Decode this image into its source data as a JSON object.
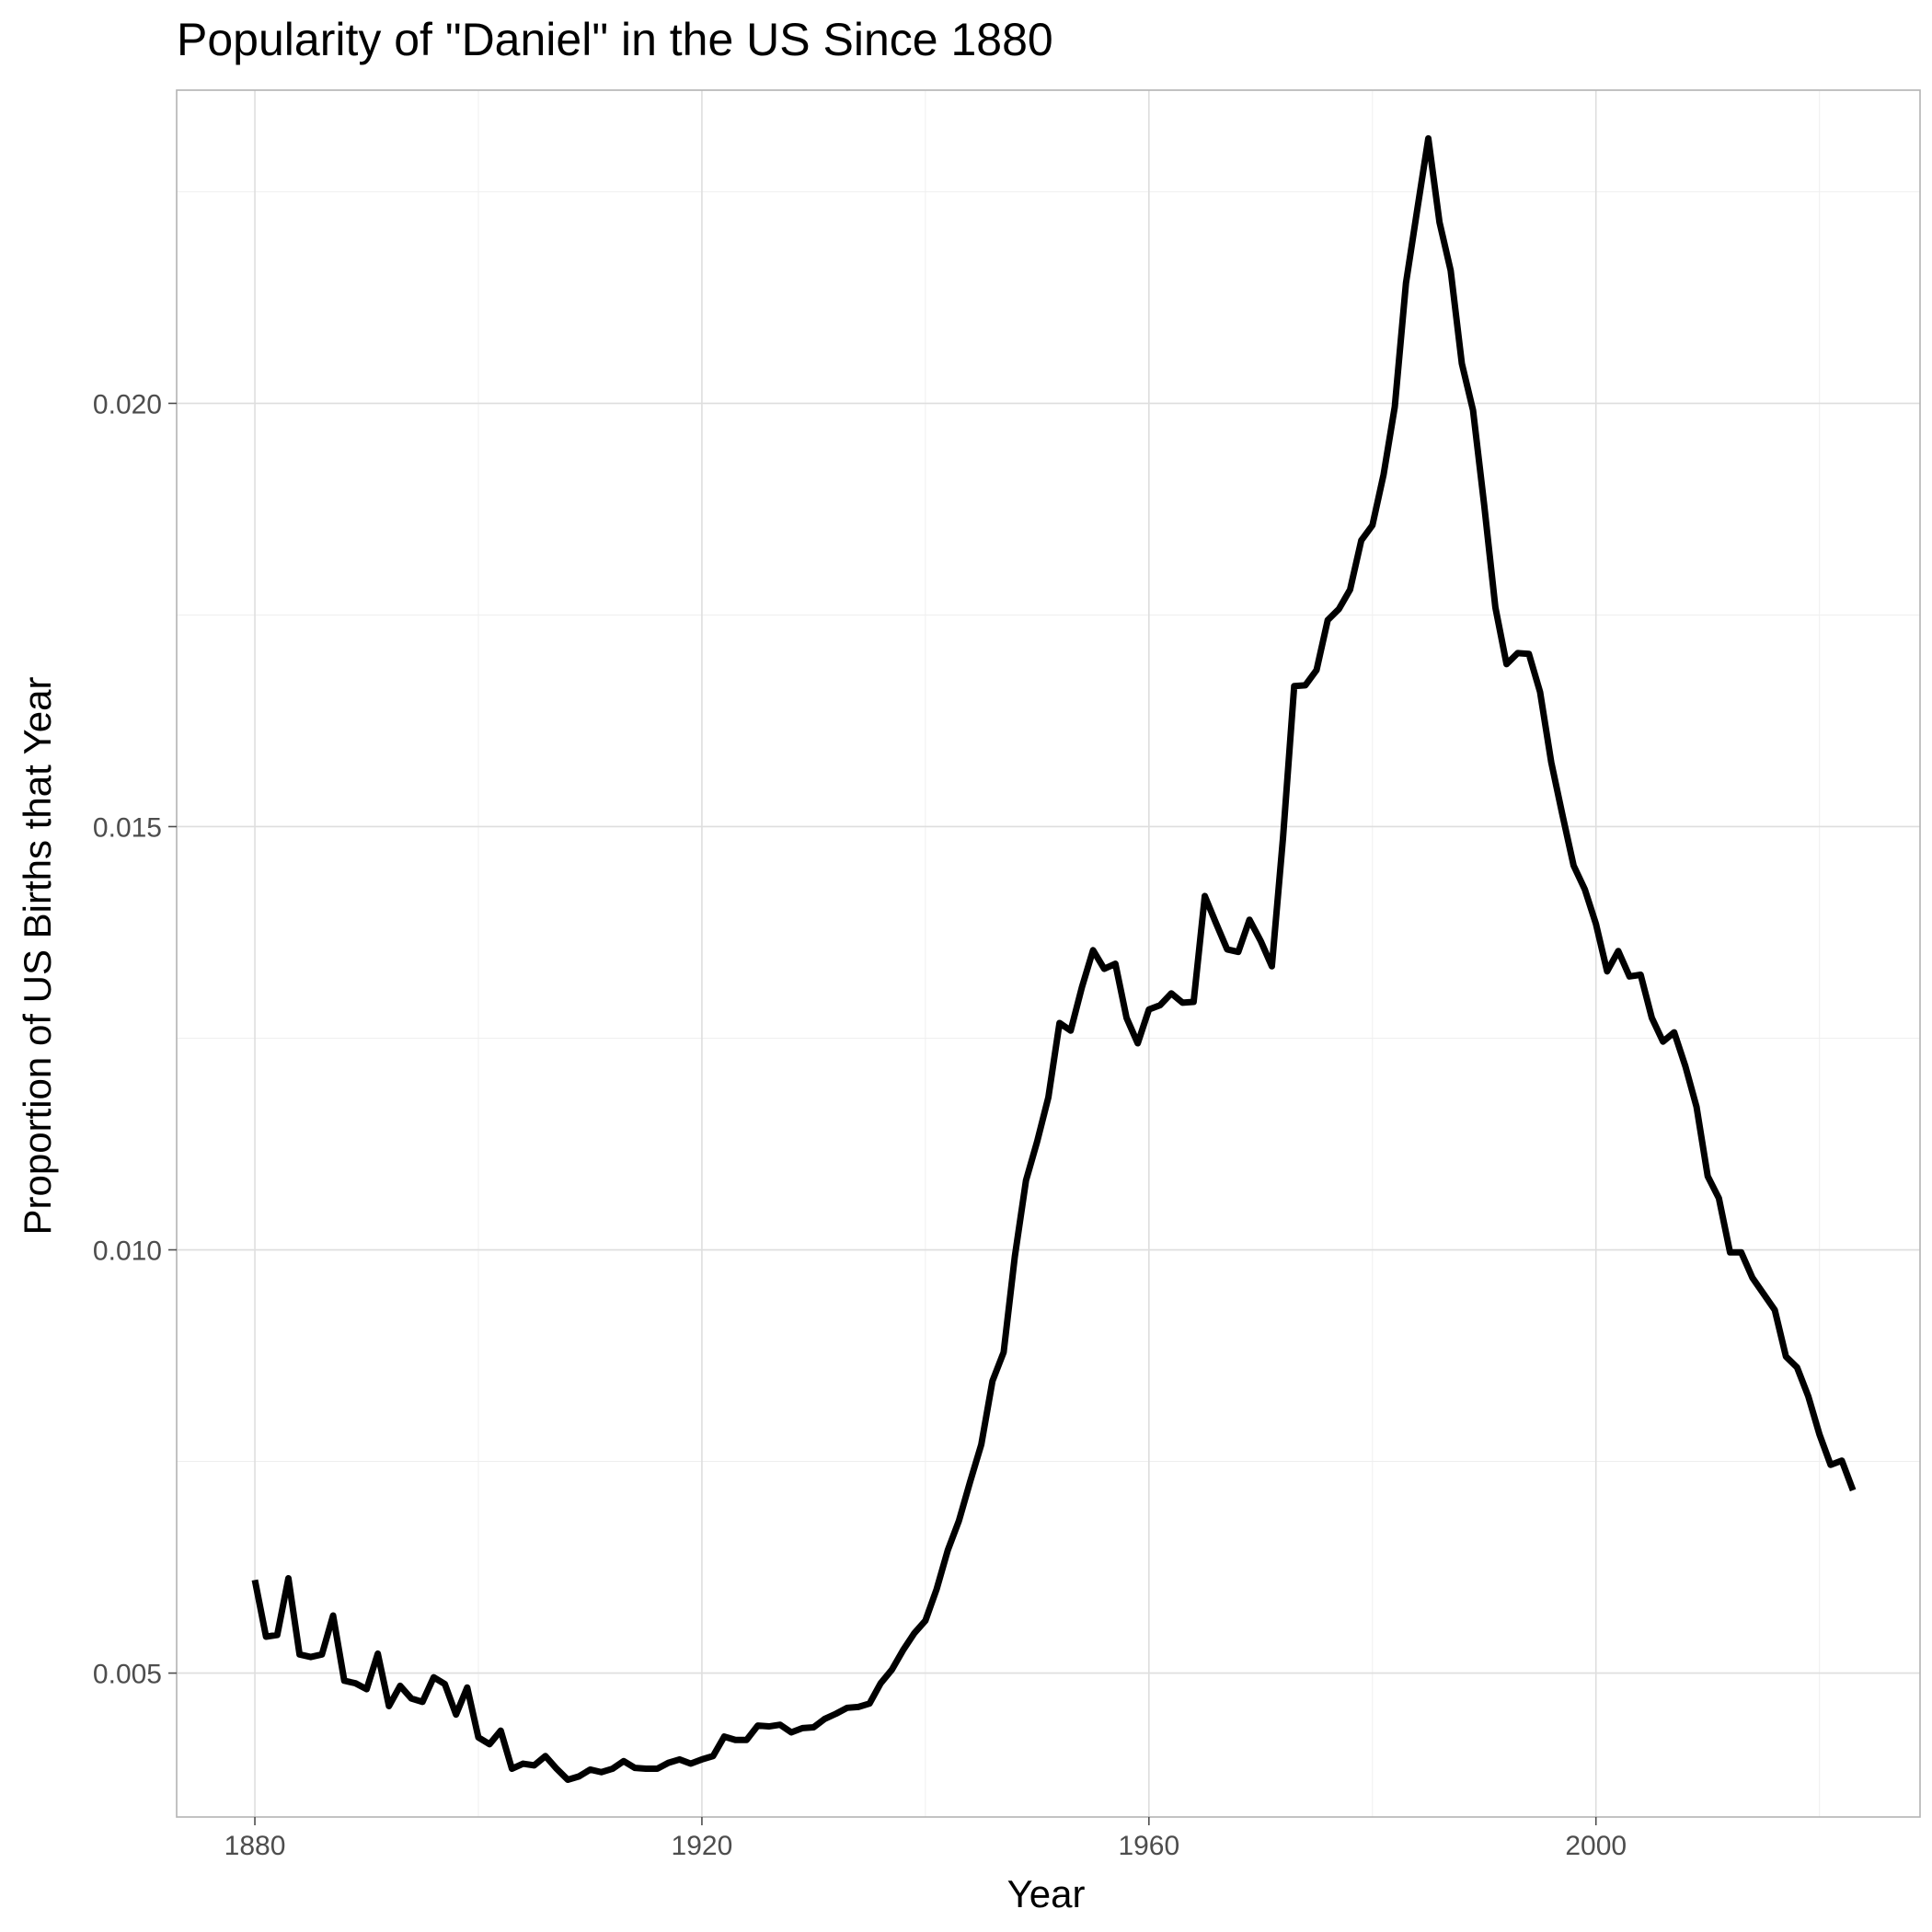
{
  "chart_data": {
    "type": "line",
    "title": "Popularity of \"Daniel\" in the US Since 1880",
    "xlabel": "Year",
    "ylabel": "Proportion of US Births that Year",
    "xlim": [
      1873,
      2029
    ],
    "ylim": [
      0.0033,
      0.0237
    ],
    "x_ticks": [
      1880,
      1920,
      1960,
      2000
    ],
    "x_tick_labels": [
      "1880",
      "1920",
      "1960",
      "2000"
    ],
    "y_ticks": [
      0.005,
      0.01,
      0.015,
      0.02
    ],
    "y_tick_labels": [
      "0.005",
      "0.010",
      "0.015",
      "0.020"
    ],
    "x_minor_ticks": [
      1900,
      1940,
      1980,
      2020
    ],
    "y_minor_ticks": [
      0.0075,
      0.0125,
      0.0175,
      0.0225
    ],
    "grid": true,
    "legend": "none",
    "line_color": "#000000",
    "series": [
      {
        "x": [
          1880,
          1881,
          1882,
          1883,
          1884,
          1885,
          1886,
          1887,
          1888,
          1889,
          1890,
          1891,
          1892,
          1893,
          1894,
          1895,
          1896,
          1897,
          1898,
          1899,
          1900,
          1901,
          1902,
          1903,
          1904,
          1905,
          1906,
          1907,
          1908,
          1909,
          1910,
          1911,
          1912,
          1913,
          1914,
          1915,
          1916,
          1917,
          1918,
          1919,
          1920,
          1921,
          1922,
          1923,
          1924,
          1925,
          1926,
          1927,
          1928,
          1929,
          1930,
          1931,
          1932,
          1933,
          1934,
          1935,
          1936,
          1937,
          1938,
          1939,
          1940,
          1941,
          1942,
          1943,
          1944,
          1945,
          1946,
          1947,
          1948,
          1949,
          1950,
          1951,
          1952,
          1953,
          1954,
          1955,
          1956,
          1957,
          1958,
          1959,
          1960,
          1961,
          1962,
          1963,
          1964,
          1965,
          1966,
          1967,
          1968,
          1969,
          1970,
          1971,
          1972,
          1973,
          1974,
          1975,
          1976,
          1977,
          1978,
          1979,
          1980,
          1981,
          1982,
          1983,
          1984,
          1985,
          1986,
          1987,
          1988,
          1989,
          1990,
          1991,
          1992,
          1993,
          1994,
          1995,
          1996,
          1997,
          1998,
          1999,
          2000,
          2001,
          2002,
          2003,
          2004,
          2005,
          2006,
          2007,
          2008,
          2009,
          2010,
          2011,
          2012,
          2013,
          2014,
          2015,
          2016,
          2017,
          2018,
          2019,
          2020,
          2021,
          2022,
          2023
        ],
        "values": [
          0.0061,
          0.00543,
          0.00545,
          0.00612,
          0.00522,
          0.00519,
          0.00522,
          0.00568,
          0.00491,
          0.00488,
          0.00481,
          0.00523,
          0.00461,
          0.00485,
          0.0047,
          0.00466,
          0.00495,
          0.00487,
          0.00451,
          0.00483,
          0.00424,
          0.00416,
          0.00432,
          0.00387,
          0.00393,
          0.00391,
          0.00402,
          0.00387,
          0.00374,
          0.00378,
          0.00386,
          0.00383,
          0.00387,
          0.00396,
          0.00388,
          0.00387,
          0.00387,
          0.00394,
          0.00398,
          0.00393,
          0.00398,
          0.00402,
          0.00425,
          0.00421,
          0.00421,
          0.00438,
          0.00437,
          0.00439,
          0.0043,
          0.00435,
          0.00436,
          0.00446,
          0.00452,
          0.00459,
          0.0046,
          0.00464,
          0.00488,
          0.00504,
          0.00527,
          0.00547,
          0.00562,
          0.00599,
          0.00645,
          0.0068,
          0.00726,
          0.0077,
          0.00845,
          0.00879,
          0.00992,
          0.01082,
          0.01128,
          0.0118,
          0.01268,
          0.01259,
          0.0131,
          0.01354,
          0.01332,
          0.01338,
          0.01274,
          0.01244,
          0.01284,
          0.01289,
          0.01303,
          0.01292,
          0.01293,
          0.01418,
          0.01386,
          0.01355,
          0.01352,
          0.0139,
          0.01365,
          0.01335,
          0.01487,
          0.01666,
          0.01667,
          0.01685,
          0.01744,
          0.01757,
          0.0178,
          0.01838,
          0.01856,
          0.01916,
          0.01996,
          0.02142,
          0.02228,
          0.02313,
          0.02214,
          0.02157,
          0.02047,
          0.01992,
          0.0188,
          0.01759,
          0.01692,
          0.01705,
          0.01704,
          0.01659,
          0.01576,
          0.01514,
          0.01454,
          0.01426,
          0.01385,
          0.01329,
          0.01353,
          0.01323,
          0.01325,
          0.01274,
          0.01246,
          0.01257,
          0.01217,
          0.01169,
          0.01087,
          0.01061,
          0.00997,
          0.00997,
          0.00967,
          0.00948,
          0.00929,
          0.00874,
          0.00861,
          0.00827,
          0.00782,
          0.00746,
          0.00751,
          0.00716
        ]
      }
    ]
  }
}
